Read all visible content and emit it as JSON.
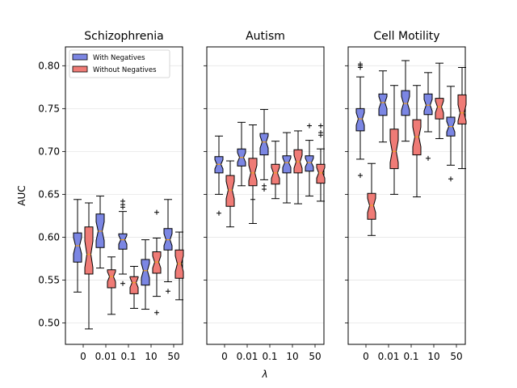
{
  "chart_data": {
    "type": "boxplot",
    "ylabel": "AUC",
    "xlabel": "λ",
    "ylim": [
      0.475,
      0.822
    ],
    "yticks": [
      "0.50",
      "0.55",
      "0.60",
      "0.65",
      "0.70",
      "0.75",
      "0.80"
    ],
    "categories": [
      "0",
      "0.01",
      "0.1",
      "10",
      "50"
    ],
    "grid": "horizontal",
    "legend": {
      "placement": "top-left",
      "entries": [
        {
          "label": "With Negatives",
          "color": "#7b86e3"
        },
        {
          "label": "Without Negatives",
          "color": "#ef7b76"
        }
      ]
    },
    "panels": [
      {
        "title": "Schizophrenia",
        "series": [
          {
            "name": "With Negatives",
            "boxes": [
              {
                "whislo": 0.536,
                "q1": 0.571,
                "med": 0.59,
                "q3": 0.605,
                "whishi": 0.644,
                "fliers": []
              },
              {
                "whislo": 0.564,
                "q1": 0.588,
                "med": 0.607,
                "q3": 0.627,
                "whishi": 0.648,
                "fliers": []
              },
              {
                "whislo": 0.557,
                "q1": 0.586,
                "med": 0.597,
                "q3": 0.604,
                "whishi": 0.63,
                "fliers": [
                  0.546,
                  0.635,
                  0.638,
                  0.642
                ]
              },
              {
                "whislo": 0.516,
                "q1": 0.544,
                "med": 0.561,
                "q3": 0.574,
                "whishi": 0.597,
                "fliers": []
              },
              {
                "whislo": 0.548,
                "q1": 0.585,
                "med": 0.597,
                "q3": 0.61,
                "whishi": 0.644,
                "fliers": [
                  0.537
                ]
              }
            ]
          },
          {
            "name": "Without Negatives",
            "boxes": [
              {
                "whislo": 0.493,
                "q1": 0.557,
                "med": 0.58,
                "q3": 0.612,
                "whishi": 0.64,
                "fliers": []
              },
              {
                "whislo": 0.51,
                "q1": 0.541,
                "med": 0.554,
                "q3": 0.562,
                "whishi": 0.577,
                "fliers": []
              },
              {
                "whislo": 0.517,
                "q1": 0.534,
                "med": 0.547,
                "q3": 0.554,
                "whishi": 0.566,
                "fliers": []
              },
              {
                "whislo": 0.531,
                "q1": 0.558,
                "med": 0.571,
                "q3": 0.583,
                "whishi": 0.599,
                "fliers": [
                  0.512,
                  0.629
                ]
              },
              {
                "whislo": 0.527,
                "q1": 0.552,
                "med": 0.569,
                "q3": 0.585,
                "whishi": 0.606,
                "fliers": []
              }
            ]
          }
        ]
      },
      {
        "title": "Autism",
        "series": [
          {
            "name": "With Negatives",
            "boxes": [
              {
                "whislo": 0.65,
                "q1": 0.675,
                "med": 0.685,
                "q3": 0.694,
                "whishi": 0.718,
                "fliers": [
                  0.628
                ]
              },
              {
                "whislo": 0.66,
                "q1": 0.683,
                "med": 0.693,
                "q3": 0.703,
                "whishi": 0.734,
                "fliers": []
              },
              {
                "whislo": 0.667,
                "q1": 0.696,
                "med": 0.711,
                "q3": 0.721,
                "whishi": 0.749,
                "fliers": [
                  0.656,
                  0.66
                ]
              },
              {
                "whislo": 0.64,
                "q1": 0.675,
                "med": 0.687,
                "q3": 0.695,
                "whishi": 0.722,
                "fliers": []
              },
              {
                "whislo": 0.648,
                "q1": 0.677,
                "med": 0.687,
                "q3": 0.695,
                "whishi": 0.713,
                "fliers": [
                  0.73
                ]
              }
            ]
          },
          {
            "name": "Without Negatives",
            "boxes": [
              {
                "whislo": 0.612,
                "q1": 0.636,
                "med": 0.655,
                "q3": 0.672,
                "whishi": 0.689,
                "fliers": []
              },
              {
                "whislo": 0.616,
                "q1": 0.66,
                "med": 0.675,
                "q3": 0.692,
                "whishi": 0.731,
                "fliers": [
                  0.644
                ]
              },
              {
                "whislo": 0.645,
                "q1": 0.662,
                "med": 0.675,
                "q3": 0.685,
                "whishi": 0.712,
                "fliers": []
              },
              {
                "whislo": 0.639,
                "q1": 0.675,
                "med": 0.688,
                "q3": 0.702,
                "whishi": 0.724,
                "fliers": []
              },
              {
                "whislo": 0.642,
                "q1": 0.663,
                "med": 0.675,
                "q3": 0.685,
                "whishi": 0.703,
                "fliers": [
                  0.719,
                  0.722,
                  0.73
                ]
              }
            ]
          }
        ]
      },
      {
        "title": "Cell Motility",
        "series": [
          {
            "name": "With Negatives",
            "boxes": [
              {
                "whislo": 0.691,
                "q1": 0.724,
                "med": 0.738,
                "q3": 0.75,
                "whishi": 0.787,
                "fliers": [
                  0.672,
                  0.798,
                  0.8,
                  0.802
                ]
              },
              {
                "whislo": 0.711,
                "q1": 0.742,
                "med": 0.757,
                "q3": 0.767,
                "whishi": 0.794,
                "fliers": []
              },
              {
                "whislo": 0.712,
                "q1": 0.742,
                "med": 0.756,
                "q3": 0.771,
                "whishi": 0.806,
                "fliers": []
              },
              {
                "whislo": 0.723,
                "q1": 0.743,
                "med": 0.754,
                "q3": 0.767,
                "whishi": 0.792,
                "fliers": [
                  0.692
                ]
              },
              {
                "whislo": 0.684,
                "q1": 0.718,
                "med": 0.729,
                "q3": 0.74,
                "whishi": 0.776,
                "fliers": [
                  0.668
                ]
              }
            ]
          },
          {
            "name": "Without Negatives",
            "boxes": [
              {
                "whislo": 0.602,
                "q1": 0.621,
                "med": 0.637,
                "q3": 0.651,
                "whishi": 0.686,
                "fliers": []
              },
              {
                "whislo": 0.65,
                "q1": 0.68,
                "med": 0.7,
                "q3": 0.726,
                "whishi": 0.777,
                "fliers": []
              },
              {
                "whislo": 0.647,
                "q1": 0.696,
                "med": 0.717,
                "q3": 0.737,
                "whishi": 0.777,
                "fliers": []
              },
              {
                "whislo": 0.715,
                "q1": 0.738,
                "med": 0.752,
                "q3": 0.762,
                "whishi": 0.803,
                "fliers": []
              },
              {
                "whislo": 0.68,
                "q1": 0.732,
                "med": 0.745,
                "q3": 0.766,
                "whishi": 0.798,
                "fliers": []
              }
            ]
          }
        ]
      }
    ]
  }
}
